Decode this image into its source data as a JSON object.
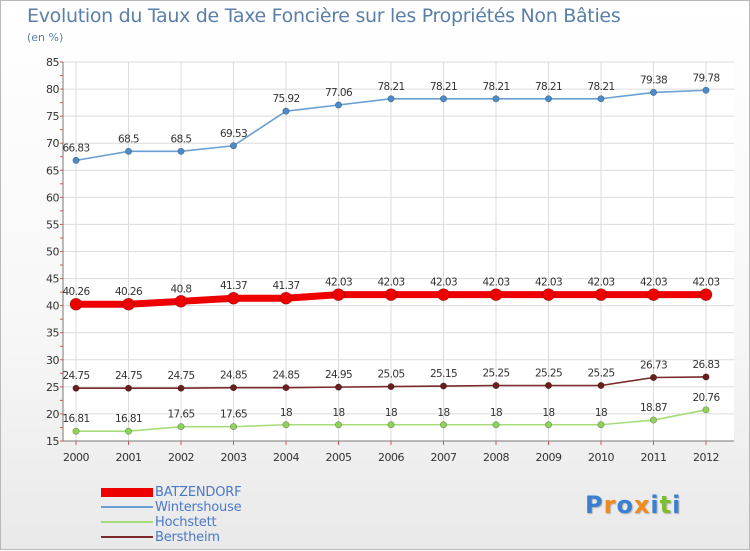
{
  "title": "Evolution du Taux de Taxe Foncière sur les Propriétés Non Bâties",
  "ylabel": "(en %)",
  "logo": {
    "text": "Proxiti",
    "letters": [
      {
        "ch": "P",
        "color": "#3a7fd0"
      },
      {
        "ch": "r",
        "color": "#f08a1c"
      },
      {
        "ch": "o",
        "color": "#3a7fd0"
      },
      {
        "ch": "x",
        "color": "#f08a1c"
      },
      {
        "ch": "i",
        "color": "#3a7fd0"
      },
      {
        "ch": "t",
        "color": "#7bbf2a"
      },
      {
        "ch": "i",
        "color": "#3a7fd0"
      }
    ]
  },
  "chart_data": {
    "type": "line",
    "title": "Evolution du Taux de Taxe Foncière sur les Propriétés Non Bâties",
    "ylabel": "(en %)",
    "xlabel": "",
    "x": [
      "2000",
      "2001",
      "2002",
      "2003",
      "2004",
      "2005",
      "2006",
      "2007",
      "2008",
      "2009",
      "2010",
      "2011",
      "2012"
    ],
    "ylim": [
      15,
      85
    ],
    "yticks": [
      15,
      20,
      25,
      30,
      35,
      40,
      45,
      50,
      55,
      60,
      65,
      70,
      75,
      80,
      85
    ],
    "grid": true,
    "legend_position": "bottom-left",
    "series": [
      {
        "name": "Wintershouse",
        "color": "#6b9fd1",
        "marker": "#4a8bc8",
        "width": 1.6,
        "radius": 3.2,
        "values": [
          66.83,
          68.5,
          68.5,
          69.53,
          75.92,
          77.06,
          78.21,
          78.21,
          78.21,
          78.21,
          78.21,
          79.38,
          79.78
        ],
        "labels": [
          "66.83",
          "68.5",
          "68.5",
          "69.53",
          "75.92",
          "77.06",
          "78.21",
          "78.21",
          "78.21",
          "78.21",
          "78.21",
          "79.38",
          "79.78"
        ]
      },
      {
        "name": "BATZENDORF",
        "color": "#ee0000",
        "marker": "#ee0000",
        "width": 7,
        "radius": 6,
        "values": [
          40.26,
          40.26,
          40.8,
          41.37,
          41.37,
          42.03,
          42.03,
          42.03,
          42.03,
          42.03,
          42.03,
          42.03,
          42.03
        ],
        "labels": [
          "40.26",
          "40.26",
          "40.8",
          "41.37",
          "41.37",
          "42.03",
          "42.03",
          "42.03",
          "42.03",
          "42.03",
          "42.03",
          "42.03",
          "42.03"
        ]
      },
      {
        "name": "Berstheim",
        "color": "#7a2a2a",
        "marker": "#6a1f1f",
        "width": 1.6,
        "radius": 3.2,
        "values": [
          24.75,
          24.75,
          24.75,
          24.85,
          24.85,
          24.95,
          25.05,
          25.15,
          25.25,
          25.25,
          25.25,
          26.73,
          26.83
        ],
        "labels": [
          "24.75",
          "24.75",
          "24.75",
          "24.85",
          "24.85",
          "24.95",
          "25.05",
          "25.15",
          "25.25",
          "25.25",
          "25.25",
          "26.73",
          "26.83"
        ]
      },
      {
        "name": "Hochstett",
        "color": "#a6dd7a",
        "marker": "#8fd25a",
        "width": 1.6,
        "radius": 3.2,
        "values": [
          16.81,
          16.81,
          17.65,
          17.65,
          18,
          18,
          18,
          18,
          18,
          18,
          18,
          18.87,
          20.76
        ],
        "labels": [
          "16.81",
          "16.81",
          "17.65",
          "17.65",
          "18",
          "18",
          "18",
          "18",
          "18",
          "18",
          "18",
          "18.87",
          "20.76"
        ]
      }
    ],
    "legend": [
      {
        "name": "BATZENDORF",
        "color": "#ee0000",
        "thickness": 9
      },
      {
        "name": "Wintershouse",
        "color": "#6b9fd1",
        "thickness": 2
      },
      {
        "name": "Hochstett",
        "color": "#a6dd7a",
        "thickness": 2
      },
      {
        "name": "Berstheim",
        "color": "#7a2a2a",
        "thickness": 2
      }
    ]
  }
}
